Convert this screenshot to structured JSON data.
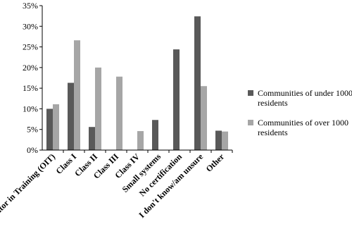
{
  "chart_data": {
    "type": "bar",
    "categories": [
      "Operator in Training (OIT)",
      "Class I",
      "Class II",
      "Class III",
      "Class IV",
      "Small systems",
      "No certification",
      "I don't know/am unsure",
      "Other"
    ],
    "series": [
      {
        "name": "Communities of under 1000 residents",
        "color": "#595959",
        "values": [
          10,
          16.3,
          5.6,
          0,
          0,
          7.3,
          24.4,
          32.4,
          4.7
        ]
      },
      {
        "name": "Communities of over 1000 residents",
        "color": "#a6a6a6",
        "values": [
          11.1,
          26.6,
          20,
          17.8,
          4.6,
          0,
          0,
          15.5,
          4.5
        ]
      }
    ],
    "ylim": [
      0,
      35
    ],
    "yticks": [
      {
        "value": 0,
        "label": "0%"
      },
      {
        "value": 5,
        "label": "5%"
      },
      {
        "value": 10,
        "label": "10%"
      },
      {
        "value": 15,
        "label": "15%"
      },
      {
        "value": 20,
        "label": "20%"
      },
      {
        "value": 25,
        "label": "25%"
      },
      {
        "value": 30,
        "label": "30%"
      },
      {
        "value": 35,
        "label": "35%"
      }
    ],
    "grid": false,
    "legend": "right"
  }
}
